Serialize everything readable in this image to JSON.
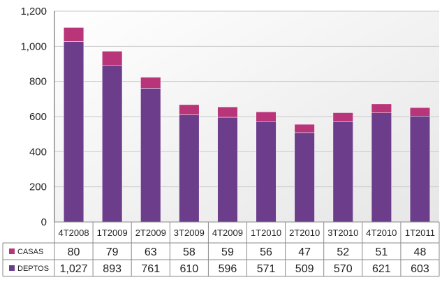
{
  "chart_data": {
    "type": "bar",
    "stacked": true,
    "categories": [
      "4T2008",
      "1T2009",
      "2T2009",
      "3T2009",
      "4T2009",
      "1T2010",
      "2T2010",
      "3T2010",
      "4T2010",
      "1T2011"
    ],
    "series": [
      {
        "name": "DEPTOS",
        "color": "#6b3d8a",
        "values": [
          1027,
          893,
          761,
          610,
          596,
          571,
          509,
          570,
          621,
          603
        ],
        "labels": [
          "1,027",
          "893",
          "761",
          "610",
          "596",
          "571",
          "509",
          "570",
          "621",
          "603"
        ]
      },
      {
        "name": "CASAS",
        "color": "#b8357a",
        "values": [
          80,
          79,
          63,
          58,
          59,
          56,
          47,
          52,
          51,
          48
        ],
        "labels": [
          "80",
          "79",
          "63",
          "58",
          "59",
          "56",
          "47",
          "52",
          "51",
          "48"
        ]
      }
    ],
    "ylim": [
      0,
      1200
    ],
    "yticks": [
      0,
      200,
      400,
      600,
      800,
      1000,
      1200
    ],
    "ytick_labels": [
      "0",
      "200",
      "400",
      "600",
      "800",
      "1,000",
      "1,200"
    ],
    "grid": true,
    "legend_position": "table-left",
    "table_row_order": [
      "CASAS",
      "DEPTOS"
    ]
  }
}
